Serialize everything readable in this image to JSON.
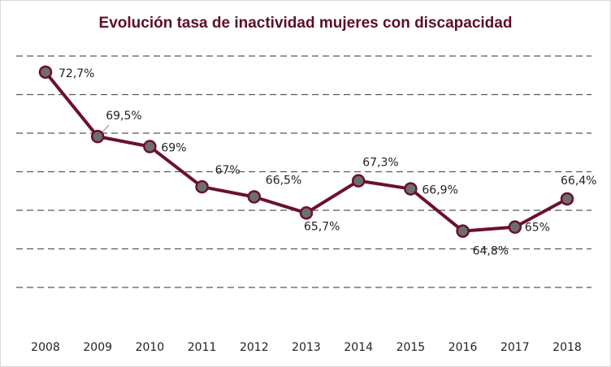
{
  "chart_data": {
    "type": "line",
    "title": "Evolución tasa de inactividad mujeres con discapacidad",
    "categories": [
      "2008",
      "2009",
      "2010",
      "2011",
      "2012",
      "2013",
      "2014",
      "2015",
      "2016",
      "2017",
      "2018"
    ],
    "values": [
      72.7,
      69.5,
      69,
      67,
      66.5,
      65.7,
      67.3,
      66.9,
      64.8,
      65,
      66.4
    ],
    "labels": [
      "72,7%",
      "69,5%",
      "69%",
      "67%",
      "66,5%",
      "65,7%",
      "67,3%",
      "66,9%",
      "64,8%",
      "65%",
      "66,4%"
    ],
    "xlabel": "",
    "ylabel": "",
    "ylim": [
      62,
      74
    ],
    "grid": true,
    "colors": {
      "line": "#6b0f32",
      "marker": "#6e6e6e",
      "grid": "#595959",
      "title": "#5b0f2e"
    }
  }
}
